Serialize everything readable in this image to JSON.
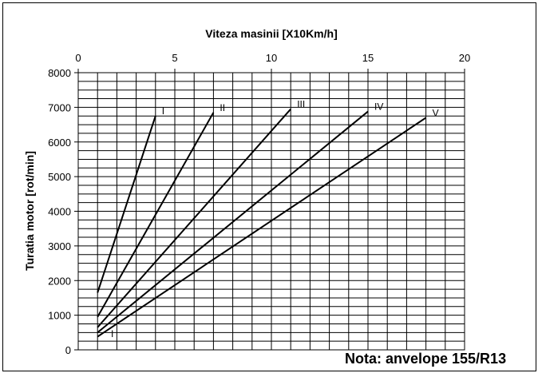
{
  "chart_data": {
    "type": "line",
    "title": "Viteza masinii  [X10Km/h]",
    "ylabel": "Turatia motor [rot/min]",
    "xlim": [
      0,
      20
    ],
    "ylim": [
      0,
      8000
    ],
    "x_ticks": [
      "0",
      "5",
      "10",
      "15",
      "20"
    ],
    "y_ticks": [
      "0",
      "1000",
      "2000",
      "3000",
      "4000",
      "5000",
      "6000",
      "7000",
      "8000"
    ],
    "x_axis_position": "top",
    "grid": true,
    "series": [
      {
        "name": "I",
        "x": [
          1,
          4
        ],
        "y": [
          1650,
          6750
        ]
      },
      {
        "name": "II",
        "x": [
          1,
          7
        ],
        "y": [
          950,
          6850
        ]
      },
      {
        "name": "III",
        "x": [
          1,
          11
        ],
        "y": [
          650,
          6950
        ]
      },
      {
        "name": "IV",
        "x": [
          1,
          15
        ],
        "y": [
          500,
          6880
        ]
      },
      {
        "name": "V",
        "x": [
          1,
          18
        ],
        "y": [
          380,
          6700
        ]
      }
    ],
    "small_label": "I"
  },
  "note": "Nota: anvelope 155/R13"
}
